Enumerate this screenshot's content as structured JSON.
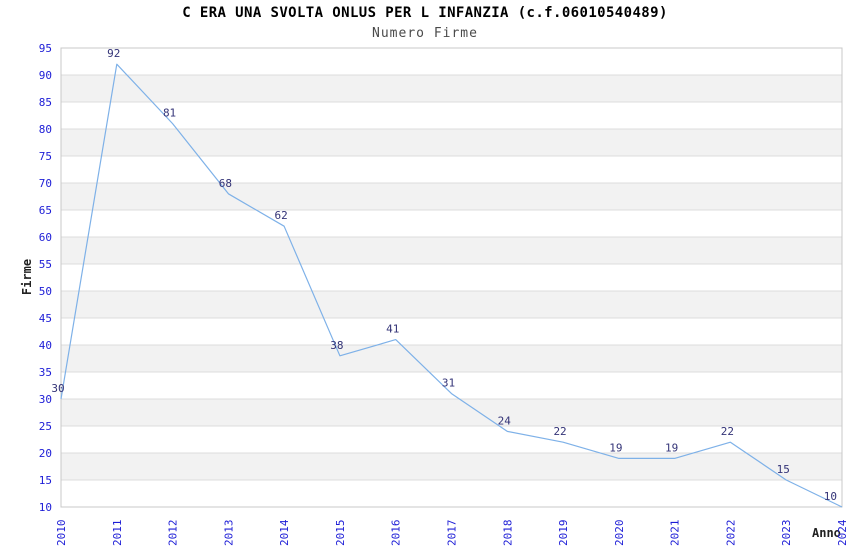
{
  "chart_data": {
    "type": "line",
    "title": "C ERA UNA SVOLTA ONLUS PER L INFANZIA (c.f.06010540489)",
    "subtitle": "Numero Firme",
    "xlabel": "Anno",
    "ylabel": "Firme",
    "categories": [
      "2010",
      "2011",
      "2012",
      "2013",
      "2014",
      "2015",
      "2016",
      "2017",
      "2018",
      "2019",
      "2020",
      "2021",
      "2022",
      "2023",
      "2024"
    ],
    "series": [
      {
        "name": "Numero Firme",
        "values": [
          30,
          92,
          81,
          68,
          62,
          38,
          41,
          31,
          24,
          22,
          19,
          19,
          22,
          15,
          10
        ]
      }
    ],
    "ylim": [
      10,
      95
    ],
    "ytick_step": 5,
    "grid": "horizontal-gridlines-with-alternating-bands",
    "legend_position": "none",
    "data_labels_visible": true,
    "x_tick_rotation_deg": -90,
    "colors": {
      "line": "#7eb1e8",
      "axis_tick_label": "#1c1cd6",
      "data_label": "#333377",
      "band_gray": "#f2f2f2",
      "band_white": "#ffffff",
      "grid_line": "#dcdcdc",
      "plot_border": "#c8c8c8",
      "title": "#000000",
      "subtitle": "#4a4a4a",
      "axis_title": "#222222"
    }
  }
}
